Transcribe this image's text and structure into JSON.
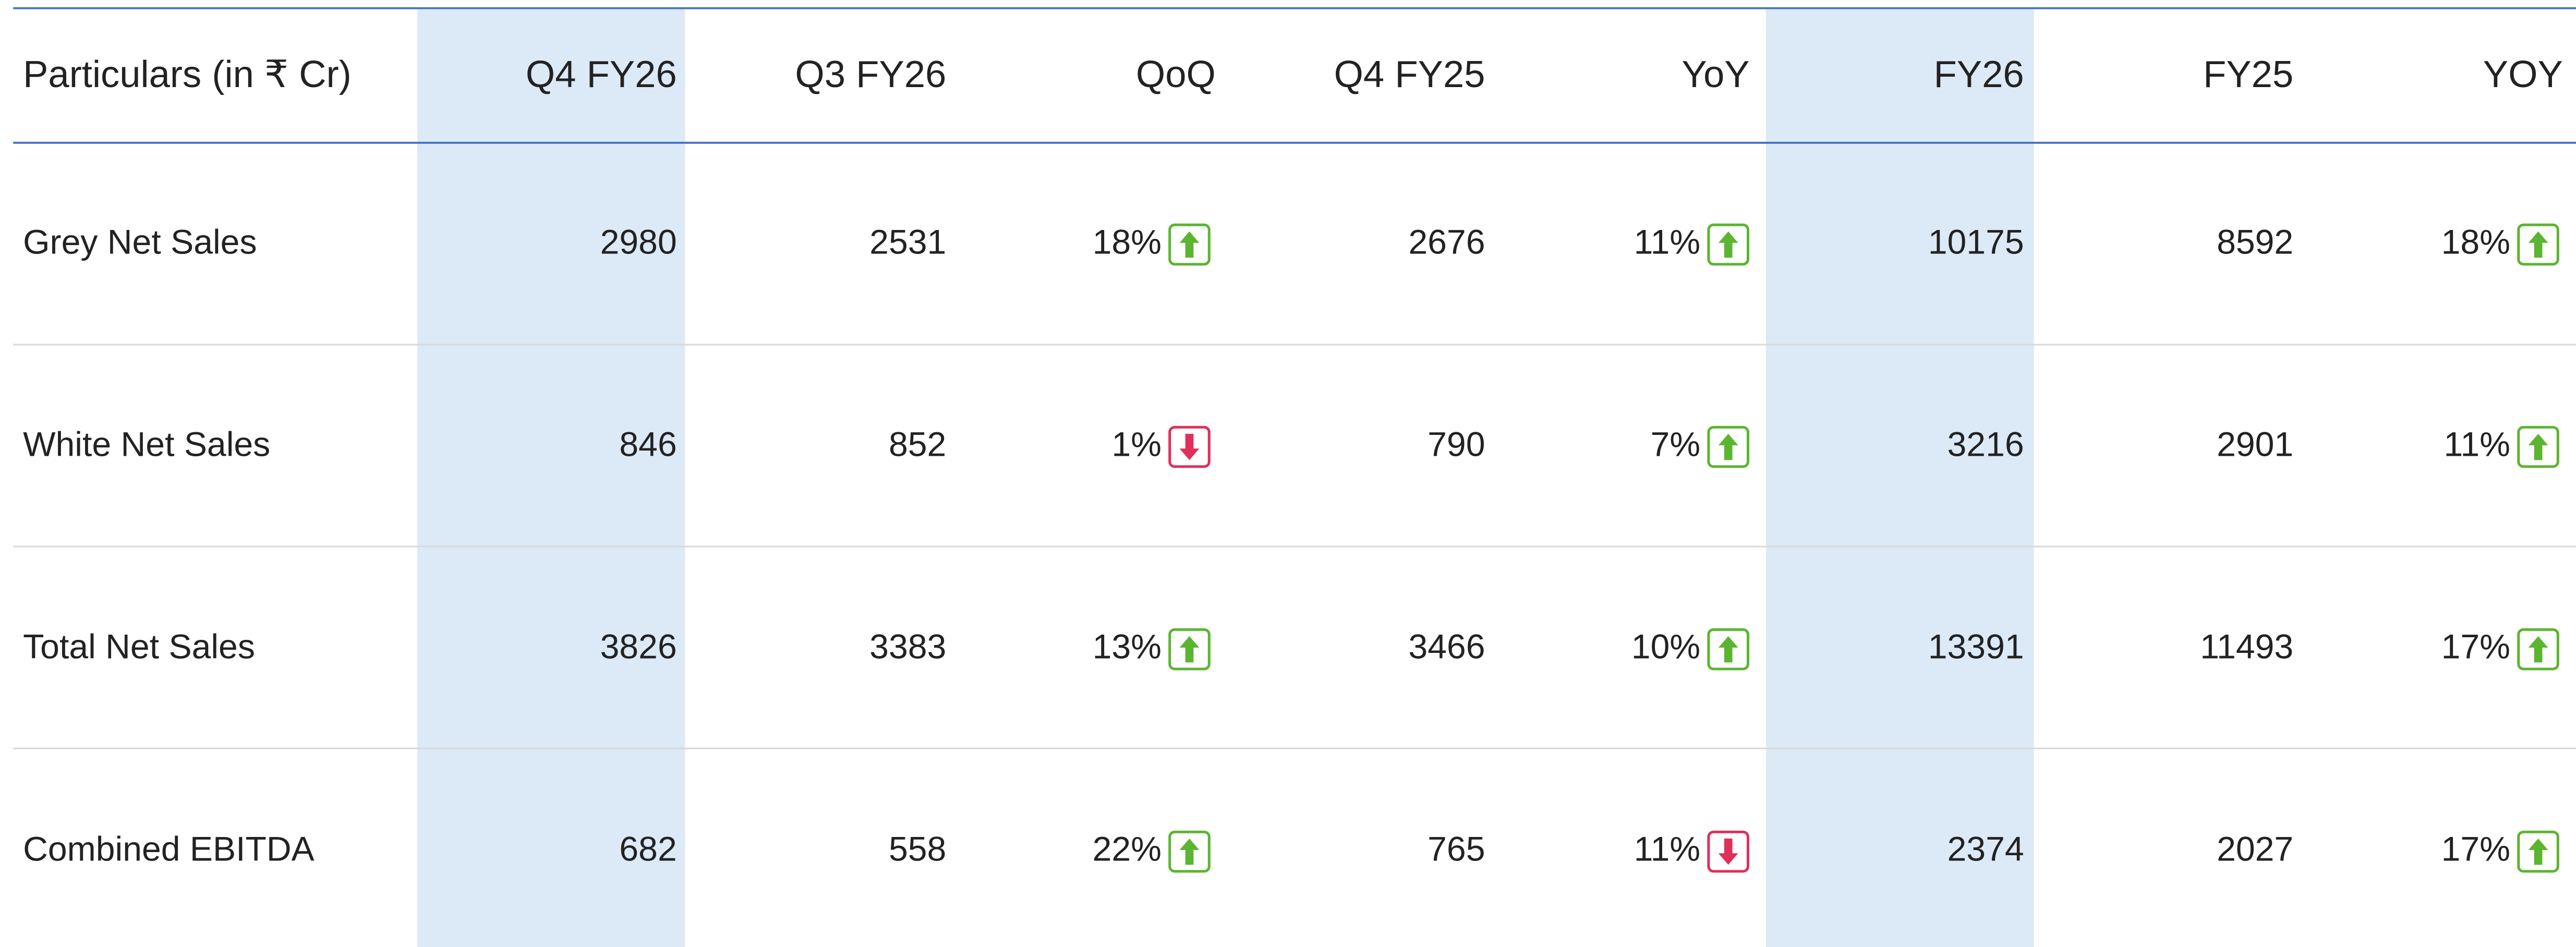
{
  "table": {
    "header": [
      "Particulars (in ₹ Cr)",
      "Q4 FY26",
      "Q3 FY26",
      "QoQ",
      "Q4 FY25",
      "YoY",
      "FY26",
      "FY25",
      "YOY"
    ],
    "rows": [
      {
        "label": "Grey Net Sales",
        "cells": [
          "2980",
          "2531",
          {
            "text": "18%",
            "trend": "up"
          },
          "2676",
          {
            "text": "11%",
            "trend": "up"
          },
          "10175",
          "8592",
          {
            "text": "18%",
            "trend": "up"
          }
        ]
      },
      {
        "label": "White Net Sales",
        "cells": [
          "846",
          "852",
          {
            "text": "1%",
            "trend": "down"
          },
          "790",
          {
            "text": "7%",
            "trend": "up"
          },
          "3216",
          "2901",
          {
            "text": "11%",
            "trend": "up"
          }
        ]
      },
      {
        "label": "Total Net Sales",
        "cells": [
          "3826",
          "3383",
          {
            "text": "13%",
            "trend": "up"
          },
          "3466",
          {
            "text": "10%",
            "trend": "up"
          },
          "13391",
          "11493",
          {
            "text": "17%",
            "trend": "up"
          }
        ]
      },
      {
        "label": "Combined EBITDA",
        "cells": [
          "682",
          "558",
          {
            "text": "22%",
            "trend": "up"
          },
          "765",
          {
            "text": "11%",
            "trend": "down"
          },
          "2374",
          "2027",
          {
            "text": "17%",
            "trend": "up"
          }
        ]
      }
    ]
  }
}
